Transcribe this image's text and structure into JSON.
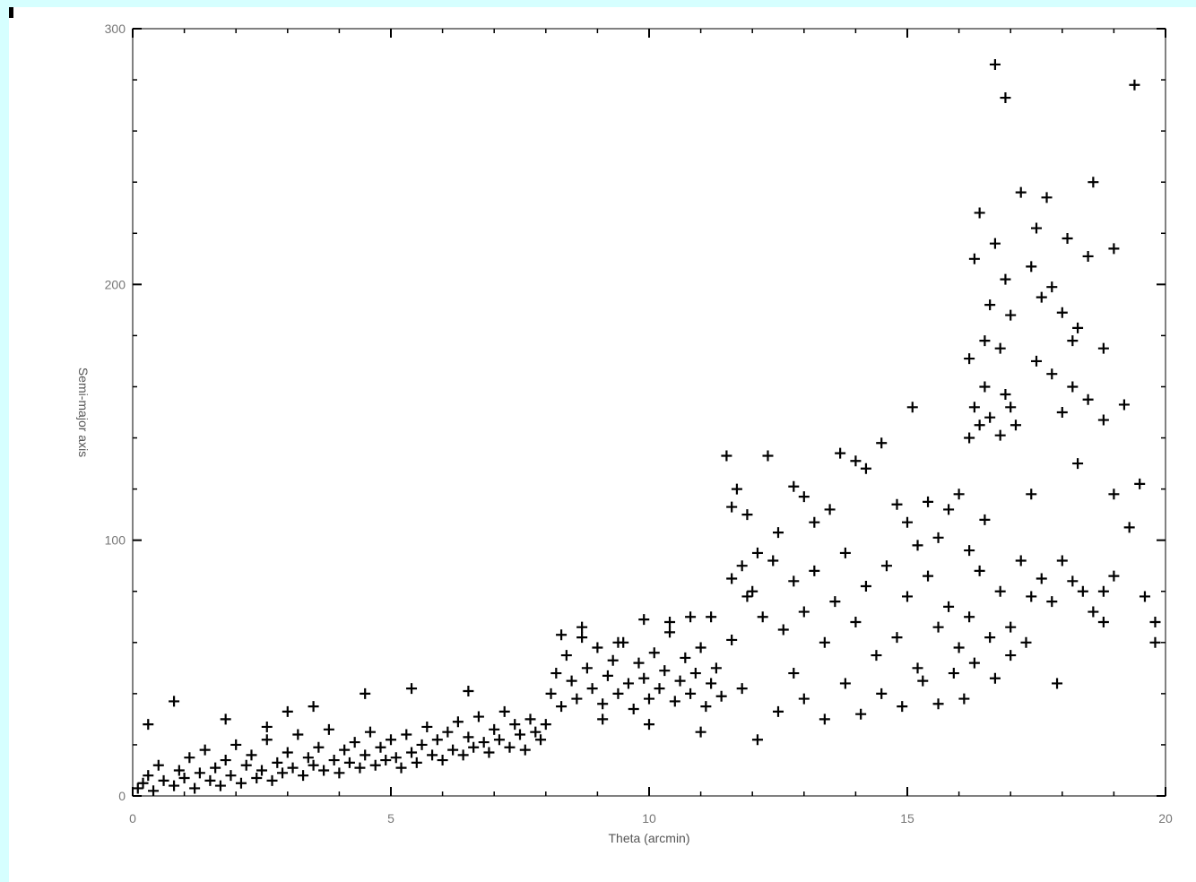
{
  "page": {
    "background": "#d6ffff",
    "plot_background": "#ffffff",
    "ink": "#000000"
  },
  "chart_data": {
    "type": "scatter",
    "title": "",
    "xlabel": "Theta (arcmin)",
    "ylabel": "Semi-major axis",
    "xlim": [
      0,
      20
    ],
    "ylim": [
      0,
      300
    ],
    "xticks": [
      "0",
      "5",
      "10",
      "15",
      "20"
    ],
    "yticks": [
      "0",
      "100",
      "200",
      "300"
    ],
    "grid": false,
    "marker": "+",
    "series": [
      {
        "points": [
          [
            0.1,
            3
          ],
          [
            0.2,
            5
          ],
          [
            0.3,
            8
          ],
          [
            0.4,
            2
          ],
          [
            0.5,
            12
          ],
          [
            0.6,
            6
          ],
          [
            0.8,
            4
          ],
          [
            0.9,
            10
          ],
          [
            1.0,
            7
          ],
          [
            1.1,
            15
          ],
          [
            1.2,
            3
          ],
          [
            1.3,
            9
          ],
          [
            1.4,
            18
          ],
          [
            1.5,
            6
          ],
          [
            1.6,
            11
          ],
          [
            1.7,
            4
          ],
          [
            1.8,
            14
          ],
          [
            1.9,
            8
          ],
          [
            2.0,
            20
          ],
          [
            2.1,
            5
          ],
          [
            2.2,
            12
          ],
          [
            2.3,
            16
          ],
          [
            2.4,
            7
          ],
          [
            2.5,
            10
          ],
          [
            2.6,
            22
          ],
          [
            2.7,
            6
          ],
          [
            2.8,
            13
          ],
          [
            2.9,
            9
          ],
          [
            3.0,
            17
          ],
          [
            3.1,
            11
          ],
          [
            3.2,
            24
          ],
          [
            3.3,
            8
          ],
          [
            3.4,
            15
          ],
          [
            3.5,
            12
          ],
          [
            3.6,
            19
          ],
          [
            3.7,
            10
          ],
          [
            3.8,
            26
          ],
          [
            3.9,
            14
          ],
          [
            4.0,
            9
          ],
          [
            4.1,
            18
          ],
          [
            4.2,
            13
          ],
          [
            4.3,
            21
          ],
          [
            4.4,
            11
          ],
          [
            4.5,
            16
          ],
          [
            4.6,
            25
          ],
          [
            4.7,
            12
          ],
          [
            4.8,
            19
          ],
          [
            4.9,
            14
          ],
          [
            5.0,
            22
          ],
          [
            5.1,
            15
          ],
          [
            5.2,
            11
          ],
          [
            5.3,
            24
          ],
          [
            5.4,
            17
          ],
          [
            5.5,
            13
          ],
          [
            5.6,
            20
          ],
          [
            5.7,
            27
          ],
          [
            5.8,
            16
          ],
          [
            5.9,
            22
          ],
          [
            6.0,
            14
          ],
          [
            6.1,
            25
          ],
          [
            6.2,
            18
          ],
          [
            6.3,
            29
          ],
          [
            6.4,
            16
          ],
          [
            6.5,
            23
          ],
          [
            6.6,
            19
          ],
          [
            6.7,
            31
          ],
          [
            6.8,
            21
          ],
          [
            6.9,
            17
          ],
          [
            7.0,
            26
          ],
          [
            7.1,
            22
          ],
          [
            7.2,
            33
          ],
          [
            7.3,
            19
          ],
          [
            7.4,
            28
          ],
          [
            7.5,
            24
          ],
          [
            7.6,
            18
          ],
          [
            7.7,
            30
          ],
          [
            7.8,
            25
          ],
          [
            7.9,
            22
          ],
          [
            8.0,
            28
          ],
          [
            0.3,
            28
          ],
          [
            0.8,
            37
          ],
          [
            1.8,
            30
          ],
          [
            3.0,
            33
          ],
          [
            4.5,
            40
          ],
          [
            5.4,
            42
          ],
          [
            6.5,
            41
          ],
          [
            3.5,
            35
          ],
          [
            2.6,
            27
          ],
          [
            8.1,
            40
          ],
          [
            8.2,
            48
          ],
          [
            8.3,
            35
          ],
          [
            8.4,
            55
          ],
          [
            8.5,
            45
          ],
          [
            8.6,
            38
          ],
          [
            8.7,
            62
          ],
          [
            8.8,
            50
          ],
          [
            8.9,
            42
          ],
          [
            9.0,
            58
          ],
          [
            9.1,
            36
          ],
          [
            9.2,
            47
          ],
          [
            9.3,
            53
          ],
          [
            9.4,
            40
          ],
          [
            9.5,
            60
          ],
          [
            9.6,
            44
          ],
          [
            9.7,
            34
          ],
          [
            9.8,
            52
          ],
          [
            9.9,
            46
          ],
          [
            10.0,
            38
          ],
          [
            10.1,
            56
          ],
          [
            10.2,
            42
          ],
          [
            10.3,
            49
          ],
          [
            10.4,
            64
          ],
          [
            10.5,
            37
          ],
          [
            10.6,
            45
          ],
          [
            10.7,
            54
          ],
          [
            10.8,
            40
          ],
          [
            10.9,
            48
          ],
          [
            11.0,
            58
          ],
          [
            11.1,
            35
          ],
          [
            11.2,
            44
          ],
          [
            11.3,
            50
          ],
          [
            11.4,
            39
          ],
          [
            8.3,
            63
          ],
          [
            8.7,
            66
          ],
          [
            9.4,
            60
          ],
          [
            9.9,
            69
          ],
          [
            10.4,
            68
          ],
          [
            10.8,
            70
          ],
          [
            11.2,
            70
          ],
          [
            11.6,
            61
          ],
          [
            9.1,
            30
          ],
          [
            10.0,
            28
          ],
          [
            11.0,
            25
          ],
          [
            11.5,
            133
          ],
          [
            11.7,
            120
          ],
          [
            11.6,
            113
          ],
          [
            11.9,
            110
          ],
          [
            12.1,
            95
          ],
          [
            12.3,
            133
          ],
          [
            12.5,
            103
          ],
          [
            12.8,
            121
          ],
          [
            13.0,
            117
          ],
          [
            13.2,
            107
          ],
          [
            13.5,
            112
          ],
          [
            13.7,
            134
          ],
          [
            14.0,
            131
          ],
          [
            14.2,
            128
          ],
          [
            14.5,
            138
          ],
          [
            14.8,
            114
          ],
          [
            15.0,
            107
          ],
          [
            15.2,
            98
          ],
          [
            15.1,
            152
          ],
          [
            15.4,
            115
          ],
          [
            15.6,
            101
          ],
          [
            15.8,
            112
          ],
          [
            16.0,
            118
          ],
          [
            16.2,
            96
          ],
          [
            11.6,
            85
          ],
          [
            11.8,
            90
          ],
          [
            11.9,
            78
          ],
          [
            12.0,
            80
          ],
          [
            12.2,
            70
          ],
          [
            12.4,
            92
          ],
          [
            12.6,
            65
          ],
          [
            12.8,
            84
          ],
          [
            13.0,
            72
          ],
          [
            13.2,
            88
          ],
          [
            13.4,
            60
          ],
          [
            13.6,
            76
          ],
          [
            13.8,
            95
          ],
          [
            14.0,
            68
          ],
          [
            14.2,
            82
          ],
          [
            14.4,
            55
          ],
          [
            14.6,
            90
          ],
          [
            14.8,
            62
          ],
          [
            15.0,
            78
          ],
          [
            15.2,
            50
          ],
          [
            15.4,
            86
          ],
          [
            15.6,
            66
          ],
          [
            15.8,
            74
          ],
          [
            16.0,
            58
          ],
          [
            16.2,
            70
          ],
          [
            16.4,
            88
          ],
          [
            16.6,
            62
          ],
          [
            16.8,
            80
          ],
          [
            17.0,
            66
          ],
          [
            17.2,
            92
          ],
          [
            17.4,
            78
          ],
          [
            17.6,
            85
          ],
          [
            17.8,
            76
          ],
          [
            18.0,
            92
          ],
          [
            18.2,
            84
          ],
          [
            18.4,
            80
          ],
          [
            18.6,
            72
          ],
          [
            18.8,
            80
          ],
          [
            19.0,
            86
          ],
          [
            11.8,
            42
          ],
          [
            12.1,
            22
          ],
          [
            12.5,
            33
          ],
          [
            12.8,
            48
          ],
          [
            13.0,
            38
          ],
          [
            13.4,
            30
          ],
          [
            13.8,
            44
          ],
          [
            14.1,
            32
          ],
          [
            14.5,
            40
          ],
          [
            14.9,
            35
          ],
          [
            15.3,
            45
          ],
          [
            15.6,
            36
          ],
          [
            15.9,
            48
          ],
          [
            16.1,
            38
          ],
          [
            16.3,
            52
          ],
          [
            16.7,
            46
          ],
          [
            17.0,
            55
          ],
          [
            17.3,
            60
          ],
          [
            17.9,
            44
          ],
          [
            18.8,
            68
          ],
          [
            16.2,
            140
          ],
          [
            16.3,
            152
          ],
          [
            16.4,
            145
          ],
          [
            16.5,
            160
          ],
          [
            16.6,
            148
          ],
          [
            16.8,
            141
          ],
          [
            16.9,
            157
          ],
          [
            17.0,
            152
          ],
          [
            17.1,
            145
          ],
          [
            17.5,
            170
          ],
          [
            17.8,
            165
          ],
          [
            18.0,
            150
          ],
          [
            18.2,
            160
          ],
          [
            18.5,
            155
          ],
          [
            18.8,
            147
          ],
          [
            19.2,
            153
          ],
          [
            16.2,
            171
          ],
          [
            16.3,
            210
          ],
          [
            16.4,
            228
          ],
          [
            16.5,
            178
          ],
          [
            16.6,
            192
          ],
          [
            16.7,
            216
          ],
          [
            16.8,
            175
          ],
          [
            16.9,
            202
          ],
          [
            17.0,
            188
          ],
          [
            17.2,
            236
          ],
          [
            17.4,
            207
          ],
          [
            17.5,
            222
          ],
          [
            17.7,
            234
          ],
          [
            17.8,
            199
          ],
          [
            18.0,
            189
          ],
          [
            18.1,
            218
          ],
          [
            18.3,
            183
          ],
          [
            18.5,
            211
          ],
          [
            18.6,
            240
          ],
          [
            18.8,
            175
          ],
          [
            19.0,
            214
          ],
          [
            16.7,
            286
          ],
          [
            16.9,
            273
          ],
          [
            19.4,
            278
          ],
          [
            18.2,
            178
          ],
          [
            17.6,
            195
          ],
          [
            16.5,
            108
          ],
          [
            18.3,
            130
          ],
          [
            17.4,
            118
          ],
          [
            19.0,
            118
          ],
          [
            19.5,
            122
          ],
          [
            19.3,
            105
          ],
          [
            19.8,
            68
          ],
          [
            19.8,
            60
          ],
          [
            19.6,
            78
          ]
        ]
      }
    ]
  }
}
